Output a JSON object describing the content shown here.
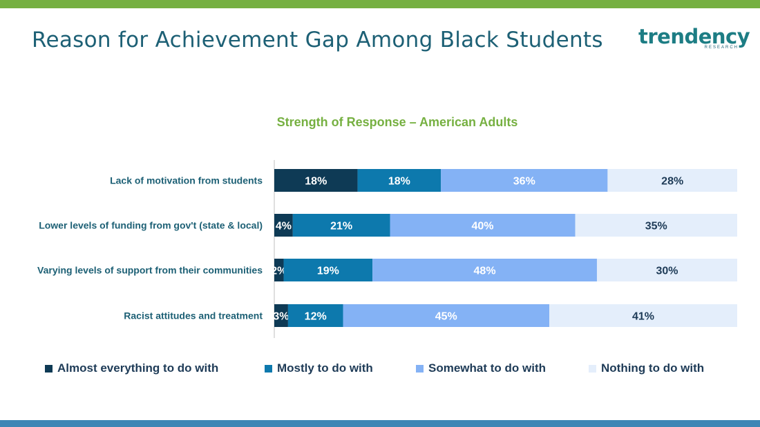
{
  "title": "Reason for Achievement Gap Among Black Students",
  "logo": {
    "word": "trendency",
    "sub": "RESEARCH"
  },
  "chart_data": {
    "type": "bar",
    "orientation": "horizontal",
    "stacked": "percent",
    "title": "Strength of Response – American Adults",
    "categories": [
      "Lack of motivation from students",
      "Lower levels of funding from gov't (state & local)",
      "Varying levels of support from their communities",
      "Racist attitudes and treatment"
    ],
    "series": [
      {
        "name": "Almost everything to do with",
        "color": "#0e3a55",
        "label_color": "#ffffff",
        "values": [
          18,
          4,
          2,
          3
        ]
      },
      {
        "name": "Mostly to do with",
        "color": "#0d79ad",
        "label_color": "#ffffff",
        "values": [
          18,
          21,
          19,
          12
        ]
      },
      {
        "name": "Somewhat to do with",
        "color": "#84b2f5",
        "label_color": "#ffffff",
        "values": [
          36,
          40,
          48,
          45
        ]
      },
      {
        "name": "Nothing to do with",
        "color": "#e4eefb",
        "label_color": "#1e3b57",
        "values": [
          28,
          35,
          30,
          41
        ]
      }
    ],
    "label_suffix": "%",
    "legend_position": "bottom",
    "grid": false
  }
}
